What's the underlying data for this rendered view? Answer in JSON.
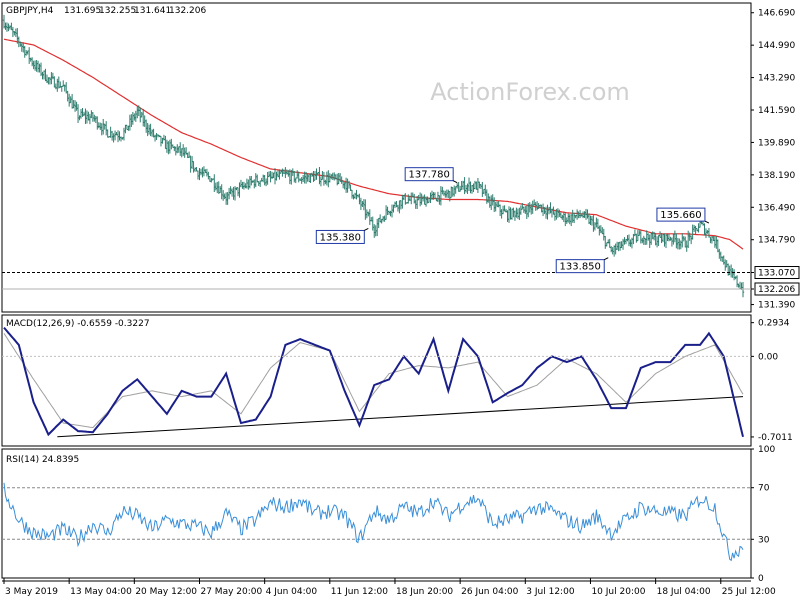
{
  "chart_data": [
    {
      "type": "ohlc",
      "title": "GBPJPY,H4",
      "ohlc_readout": [
        "131.695",
        "132.255",
        "131.641",
        "132.206"
      ],
      "watermark": "ActionForex.com",
      "ylim": [
        131.0,
        147.2
      ],
      "y_ticks": [
        "146.690",
        "144.990",
        "143.290",
        "141.590",
        "139.890",
        "138.190",
        "136.490",
        "134.790",
        "133.070",
        "132.206",
        "131.390"
      ],
      "y_tick_values": [
        146.69,
        144.99,
        143.29,
        141.59,
        139.89,
        138.19,
        136.49,
        134.79,
        133.07,
        132.206,
        131.39
      ],
      "x_tick_labels": [
        "3 May 2019",
        "13 May 04:00",
        "20 May 12:00",
        "27 May 20:00",
        "4 Jun 04:00",
        "11 Jun 12:00",
        "18 Jun 20:00",
        "26 Jun 04:00",
        "3 Jul 12:00",
        "10 Jul 20:00",
        "18 Jul 04:00",
        "25 Jul 12:00"
      ],
      "x_tick_index": [
        0,
        44,
        88,
        132,
        176,
        220,
        264,
        308,
        352,
        396,
        440,
        484
      ],
      "bar_count": 500,
      "anchor_index": [
        0,
        10,
        20,
        30,
        40,
        50,
        60,
        70,
        80,
        90,
        100,
        110,
        120,
        130,
        140,
        150,
        160,
        170,
        180,
        190,
        200,
        210,
        220,
        230,
        240,
        250,
        260,
        270,
        280,
        290,
        300,
        310,
        320,
        330,
        340,
        350,
        360,
        370,
        380,
        390,
        400,
        410,
        420,
        430,
        440,
        450,
        460,
        470,
        480,
        490,
        499
      ],
      "anchor_close": [
        146.2,
        145.2,
        144.0,
        143.2,
        142.8,
        141.3,
        141.2,
        140.4,
        140.3,
        141.5,
        140.3,
        139.7,
        139.4,
        138.4,
        138.0,
        137.0,
        137.5,
        137.9,
        138.0,
        138.2,
        138.0,
        138.1,
        138.0,
        137.8,
        136.8,
        135.4,
        136.4,
        136.9,
        136.8,
        137.0,
        137.2,
        137.6,
        137.6,
        136.6,
        136.1,
        136.3,
        136.6,
        136.2,
        135.9,
        136.1,
        135.5,
        134.2,
        134.6,
        135.0,
        134.8,
        134.9,
        134.6,
        135.6,
        134.7,
        133.0,
        132.206
      ],
      "ma_index": [
        0,
        20,
        40,
        60,
        80,
        100,
        120,
        140,
        160,
        180,
        200,
        220,
        240,
        260,
        280,
        300,
        320,
        340,
        360,
        380,
        400,
        420,
        440,
        460,
        480,
        490,
        499
      ],
      "ma_values": [
        145.3,
        145.0,
        144.2,
        143.3,
        142.3,
        141.3,
        140.4,
        139.8,
        139.1,
        138.5,
        138.3,
        138.1,
        137.6,
        137.2,
        137.0,
        136.9,
        136.9,
        136.8,
        136.5,
        136.2,
        136.1,
        135.5,
        135.1,
        135.1,
        135.0,
        134.8,
        134.3
      ],
      "horizontal_levels": [
        133.07,
        132.206
      ],
      "callouts": [
        {
          "label": "137.780",
          "index": 306,
          "value": 137.78,
          "side": "above"
        },
        {
          "label": "135.380",
          "index": 246,
          "value": 135.38,
          "side": "below"
        },
        {
          "label": "133.850",
          "index": 408,
          "value": 133.85,
          "side": "below"
        },
        {
          "label": "135.660",
          "index": 476,
          "value": 135.66,
          "side": "above"
        }
      ],
      "colors": {
        "bars": "#2e7d6e",
        "ma": "#e03030",
        "level": "#000000",
        "callout_border": "#1f3aa6"
      }
    },
    {
      "type": "line",
      "title": "MACD(12,26,9) -0.6559 -0.3227",
      "ylim": [
        -0.78,
        0.36
      ],
      "y_ticks": [
        "0.2934",
        "0.00",
        "-0.7011"
      ],
      "y_tick_values": [
        0.2934,
        0.0,
        -0.7011
      ],
      "macd_index": [
        0,
        10,
        20,
        30,
        40,
        50,
        60,
        70,
        80,
        90,
        100,
        110,
        120,
        130,
        140,
        150,
        160,
        170,
        180,
        190,
        200,
        210,
        220,
        230,
        240,
        250,
        260,
        270,
        280,
        290,
        300,
        310,
        320,
        330,
        340,
        350,
        360,
        370,
        380,
        390,
        400,
        410,
        420,
        430,
        440,
        450,
        460,
        470,
        476,
        486,
        499
      ],
      "macd_values": [
        0.25,
        0.1,
        -0.4,
        -0.68,
        -0.55,
        -0.65,
        -0.66,
        -0.5,
        -0.3,
        -0.2,
        -0.35,
        -0.5,
        -0.3,
        -0.35,
        -0.35,
        -0.15,
        -0.58,
        -0.55,
        -0.35,
        0.1,
        0.15,
        0.1,
        0.05,
        -0.3,
        -0.6,
        -0.25,
        -0.2,
        0.0,
        -0.15,
        0.15,
        -0.3,
        0.15,
        0.0,
        -0.4,
        -0.32,
        -0.25,
        -0.1,
        0.0,
        -0.05,
        0.0,
        -0.2,
        -0.45,
        -0.45,
        -0.1,
        -0.05,
        -0.05,
        0.1,
        0.1,
        0.2,
        0.0,
        -0.7
      ],
      "signal_index": [
        0,
        20,
        40,
        60,
        80,
        100,
        120,
        140,
        160,
        180,
        200,
        220,
        240,
        260,
        280,
        300,
        320,
        340,
        360,
        380,
        400,
        420,
        440,
        460,
        480,
        499
      ],
      "signal_values": [
        0.2,
        -0.2,
        -0.58,
        -0.62,
        -0.35,
        -0.3,
        -0.35,
        -0.3,
        -0.5,
        -0.1,
        0.12,
        0.05,
        -0.48,
        -0.15,
        -0.08,
        -0.1,
        -0.05,
        -0.35,
        -0.25,
        -0.02,
        -0.15,
        -0.4,
        -0.15,
        0.0,
        0.1,
        -0.33
      ],
      "trendline_index": [
        36,
        499
      ],
      "trendline_values": [
        -0.7,
        -0.35
      ],
      "colors": {
        "macd": "#1a1f8a",
        "signal": "#a0a0a0",
        "trendline": "#000000"
      }
    },
    {
      "type": "line",
      "title": "RSI(14) 24.8395",
      "ylim": [
        0,
        100
      ],
      "y_ticks": [
        "100",
        "70",
        "30",
        "0"
      ],
      "y_tick_values": [
        100,
        70,
        30,
        0
      ],
      "levels": [
        70,
        30
      ],
      "rsi_index": [
        0,
        10,
        20,
        30,
        40,
        50,
        60,
        70,
        80,
        90,
        100,
        110,
        120,
        130,
        140,
        150,
        160,
        170,
        180,
        190,
        200,
        210,
        220,
        230,
        240,
        250,
        260,
        270,
        280,
        290,
        300,
        310,
        320,
        330,
        340,
        350,
        360,
        370,
        380,
        390,
        400,
        410,
        420,
        430,
        440,
        450,
        460,
        470,
        480,
        490,
        499
      ],
      "rsi_values": [
        68,
        45,
        35,
        32,
        38,
        30,
        42,
        35,
        52,
        48,
        38,
        45,
        42,
        40,
        35,
        50,
        38,
        45,
        58,
        55,
        60,
        50,
        52,
        48,
        30,
        52,
        45,
        55,
        50,
        60,
        48,
        58,
        62,
        42,
        45,
        48,
        55,
        52,
        45,
        40,
        48,
        35,
        45,
        55,
        52,
        50,
        48,
        62,
        55,
        18,
        25
      ],
      "colors": {
        "rsi": "#3a8fd8",
        "levels": "#888888"
      }
    }
  ]
}
